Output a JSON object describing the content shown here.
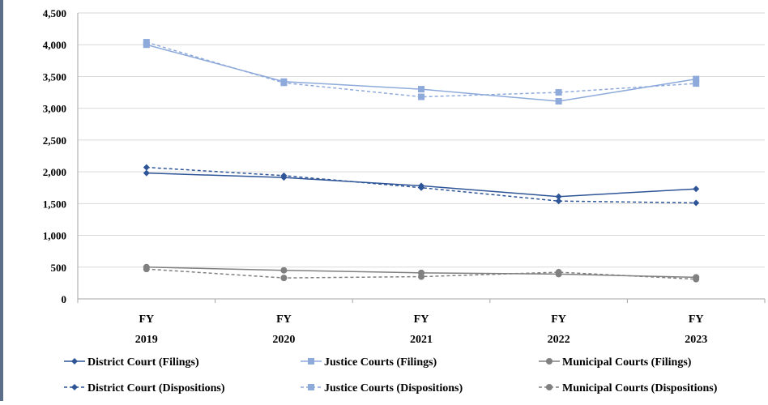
{
  "chart_data": {
    "type": "line",
    "title": "",
    "xlabel": "",
    "ylabel": "",
    "categories": [
      {
        "top": "FY",
        "bottom": "2019"
      },
      {
        "top": "FY",
        "bottom": "2020"
      },
      {
        "top": "FY",
        "bottom": "2021"
      },
      {
        "top": "FY",
        "bottom": "2022"
      },
      {
        "top": "FY",
        "bottom": "2023"
      }
    ],
    "ylim": [
      0,
      4500
    ],
    "yticks": [
      "0",
      "500",
      "1,000",
      "1,500",
      "2,000",
      "2,500",
      "3,000",
      "3,500",
      "4,000",
      "4,500"
    ],
    "grid": true,
    "legend_position": "bottom",
    "series": [
      {
        "name": "District Court (Filings)",
        "values": [
          1980,
          1910,
          1780,
          1610,
          1730
        ],
        "color": "#2e5597",
        "dashed": false,
        "marker": "diamond"
      },
      {
        "name": "Justice Courts (Filings)",
        "values": [
          4000,
          3420,
          3300,
          3110,
          3460
        ],
        "color": "#8eaadb",
        "dashed": false,
        "marker": "square"
      },
      {
        "name": "Municipal Courts (Filings)",
        "values": [
          500,
          450,
          410,
          390,
          340
        ],
        "color": "#808080",
        "dashed": false,
        "marker": "circle"
      },
      {
        "name": "District Court (Dispositions)",
        "values": [
          2070,
          1940,
          1750,
          1540,
          1510
        ],
        "color": "#2e5597",
        "dashed": true,
        "marker": "diamond"
      },
      {
        "name": "Justice Courts (Dispositions)",
        "values": [
          4040,
          3400,
          3180,
          3250,
          3390
        ],
        "color": "#8eaadb",
        "dashed": true,
        "marker": "square"
      },
      {
        "name": "Municipal Courts (Dispositions)",
        "values": [
          470,
          330,
          350,
          420,
          310
        ],
        "color": "#808080",
        "dashed": true,
        "marker": "circle"
      }
    ]
  }
}
